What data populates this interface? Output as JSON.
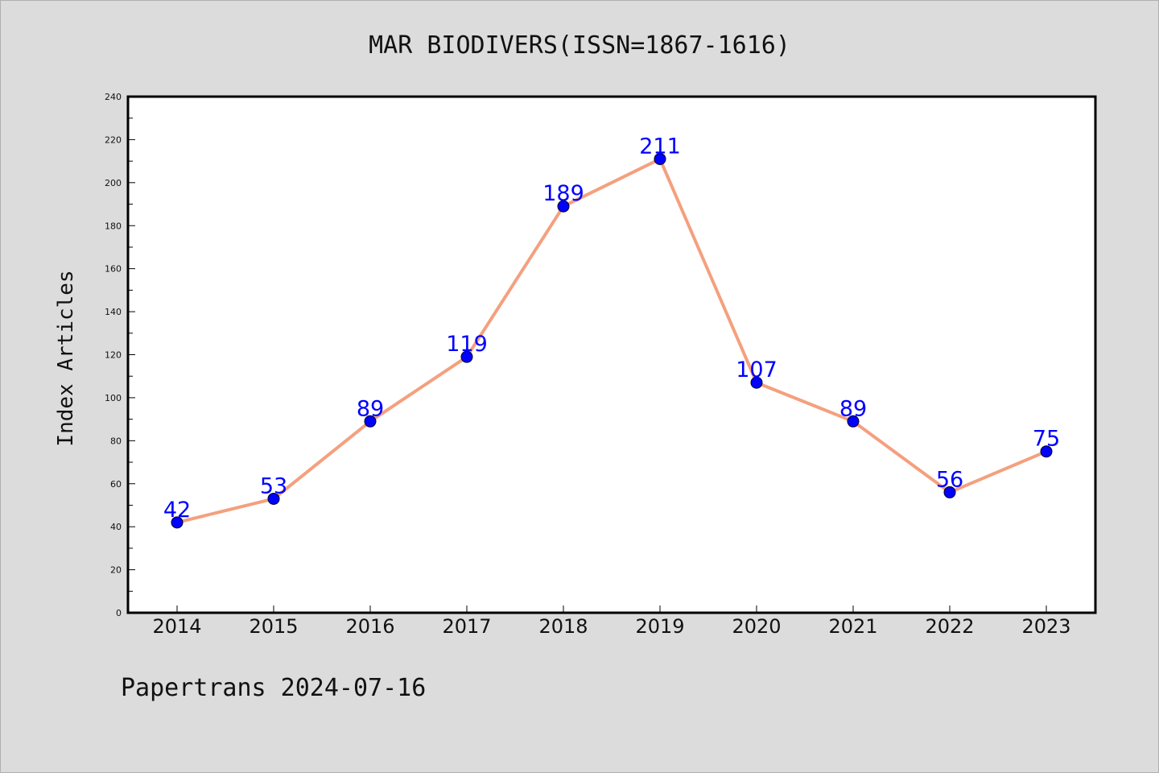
{
  "chart_data": {
    "type": "line",
    "title": "MAR BIODIVERS(ISSN=1867-1616)",
    "ylabel": "Index Articles",
    "xlabel": "",
    "footer": "Papertrans 2024-07-16",
    "categories": [
      "2014",
      "2015",
      "2016",
      "2017",
      "2018",
      "2019",
      "2020",
      "2021",
      "2022",
      "2023"
    ],
    "values": [
      42,
      53,
      89,
      119,
      189,
      211,
      107,
      89,
      56,
      75
    ],
    "ylim": [
      0,
      240
    ],
    "yticks": [
      0,
      20,
      40,
      60,
      80,
      100,
      120,
      140,
      160,
      180,
      200,
      220,
      240
    ],
    "grid": false,
    "legend": "none",
    "colors": {
      "background": "#dcdcdc",
      "plot_background": "#ffffff",
      "line": "#f4a07e",
      "marker": "#0000ff",
      "data_label": "#0000ff"
    }
  }
}
